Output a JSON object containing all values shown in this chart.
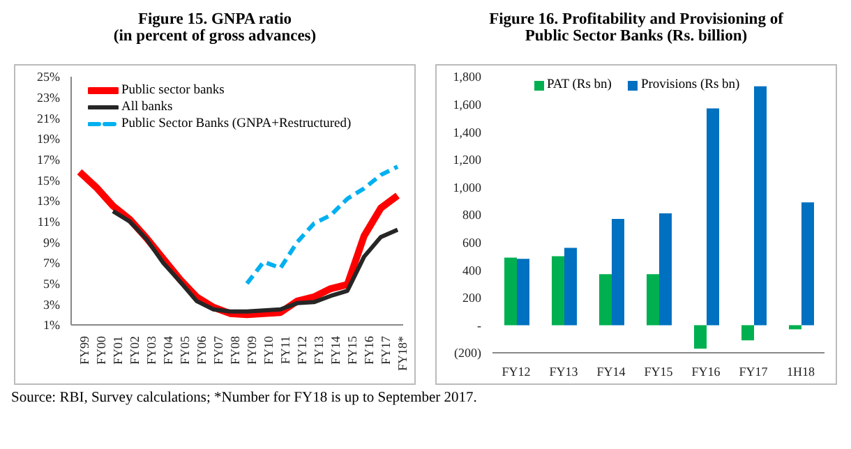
{
  "chart_data": [
    {
      "type": "line",
      "title": "Figure 15. GNPA ratio",
      "subtitle": "(in percent of gross advances)",
      "categories": [
        "FY99",
        "FY00",
        "FY01",
        "FY02",
        "FY03",
        "FY04",
        "FY05",
        "FY06",
        "FY07",
        "FY08",
        "FY09",
        "FY10",
        "FY11",
        "FY12",
        "FY13",
        "FY14",
        "FY15",
        "FY16",
        "FY17",
        "FY18*"
      ],
      "series": [
        {
          "name": "Public sector banks",
          "color": "#ff0000",
          "line_style": "solid",
          "values": [
            15.8,
            14.3,
            12.5,
            11.2,
            9.4,
            7.4,
            5.4,
            3.7,
            2.7,
            2.1,
            2.0,
            2.1,
            2.2,
            3.3,
            3.7,
            4.5,
            4.9,
            9.6,
            12.3,
            13.5
          ]
        },
        {
          "name": "All banks",
          "color": "#262626",
          "line_style": "solid",
          "values": [
            null,
            null,
            12.0,
            11.0,
            9.3,
            7.0,
            5.2,
            3.3,
            2.5,
            2.3,
            2.3,
            2.4,
            2.5,
            3.1,
            3.2,
            3.8,
            4.3,
            7.6,
            9.5,
            10.2
          ]
        },
        {
          "name": "Public Sector Banks (GNPA+Restructured)",
          "color": "#00b0f0",
          "line_style": "dashed",
          "values": [
            null,
            null,
            null,
            null,
            null,
            null,
            null,
            null,
            null,
            null,
            5.0,
            7.1,
            6.5,
            9.0,
            10.8,
            11.6,
            13.2,
            14.2,
            15.5,
            16.3
          ]
        }
      ],
      "ylim": [
        1,
        25
      ],
      "yticks": [
        {
          "value": 1,
          "label": "1%"
        },
        {
          "value": 3,
          "label": "3%"
        },
        {
          "value": 5,
          "label": "5%"
        },
        {
          "value": 7,
          "label": "7%"
        },
        {
          "value": 9,
          "label": "9%"
        },
        {
          "value": 11,
          "label": "11%"
        },
        {
          "value": 13,
          "label": "13%"
        },
        {
          "value": 15,
          "label": "15%"
        },
        {
          "value": 17,
          "label": "17%"
        },
        {
          "value": 19,
          "label": "19%"
        },
        {
          "value": 21,
          "label": "21%"
        },
        {
          "value": 23,
          "label": "23%"
        },
        {
          "value": 25,
          "label": "25%"
        }
      ],
      "grid": false,
      "legend": "top left",
      "marker": "none",
      "annotations": [
        "Source: RBI, Survey calculations; *Number for FY18 is up to September 2017."
      ]
    },
    {
      "type": "bar",
      "title": "Figure 16. Profitability and Provisioning of Public Sector Banks (Rs. billion)",
      "categories": [
        "FY12",
        "FY13",
        "FY14",
        "FY15",
        "FY16",
        "FY17",
        "1H18"
      ],
      "series": [
        {
          "name": "PAT (Rs bn)",
          "color": "#00b050",
          "values": [
            490,
            500,
            370,
            370,
            -170,
            -110,
            -30
          ]
        },
        {
          "name": "Provisions (Rs bn)",
          "color": "#0070c0",
          "values": [
            480,
            560,
            770,
            810,
            1570,
            1730,
            890
          ]
        }
      ],
      "ylim": [
        -200,
        1800
      ],
      "yticks": [
        {
          "value": -200,
          "label": "(200)"
        },
        {
          "value": 0,
          "label": "-"
        },
        200,
        400,
        600,
        800,
        {
          "value": 1000,
          "label": "1,000"
        },
        {
          "value": 1200,
          "label": "1,200"
        },
        {
          "value": 1400,
          "label": "1,400"
        },
        {
          "value": 1600,
          "label": "1,600"
        },
        {
          "value": 1800,
          "label": "1,800"
        }
      ],
      "grid": false,
      "legend": "top"
    }
  ]
}
